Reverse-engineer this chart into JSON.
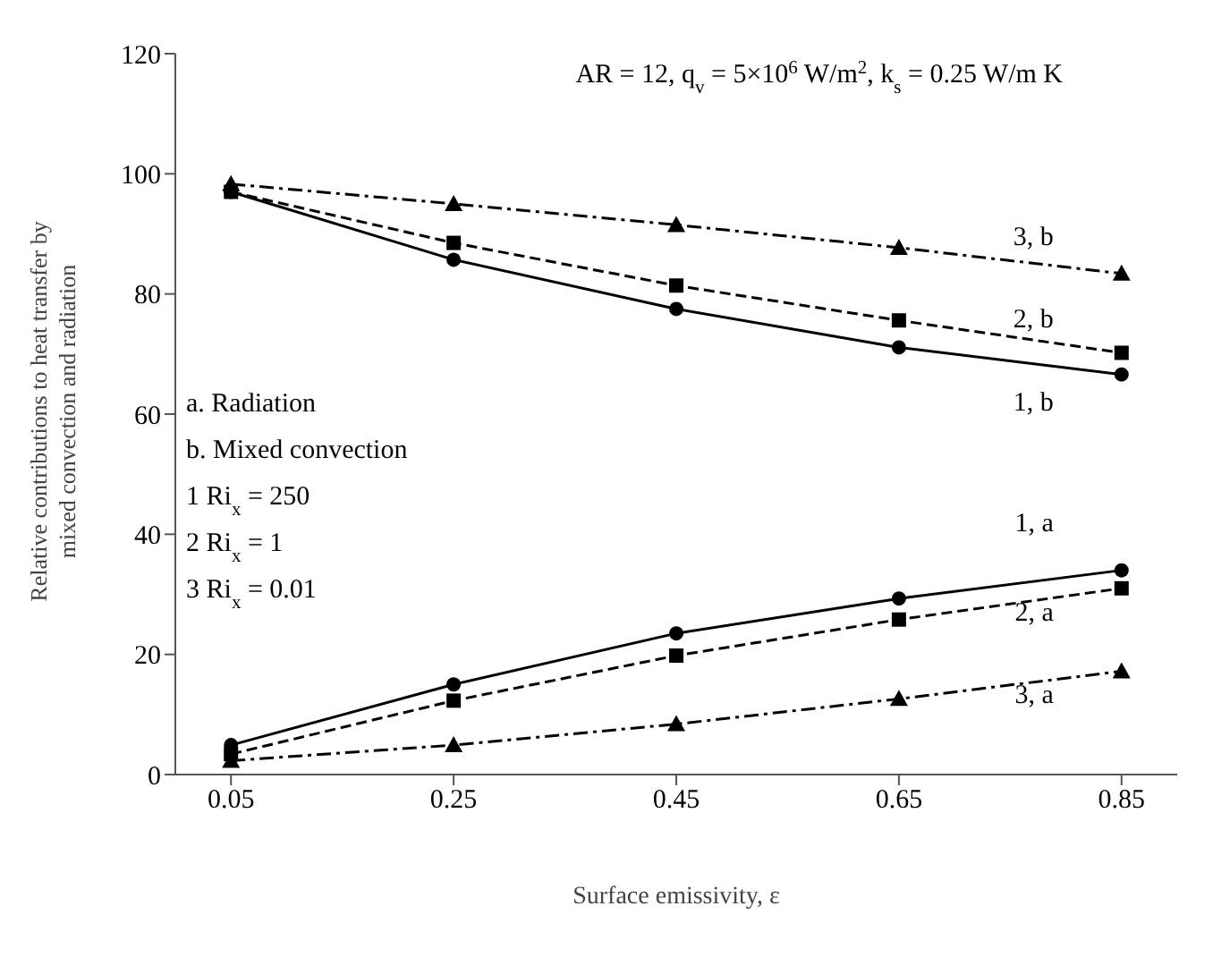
{
  "chart_data": {
    "type": "line",
    "xlabel": "Surface emissivity, ε",
    "ylabel": "Relative contributions to heat transfer by mixed convection and radiation",
    "x": [
      0.05,
      0.25,
      0.45,
      0.65,
      0.85
    ],
    "xlim": [
      0,
      0.9
    ],
    "xticks": [
      0.05,
      0.25,
      0.45,
      0.65,
      0.85
    ],
    "ylim": [
      0,
      120
    ],
    "yticks": [
      0,
      20,
      40,
      60,
      80,
      100,
      120
    ],
    "grid": false,
    "legend": false,
    "series": [
      {
        "name": "1, a",
        "color": "#000000",
        "marker": "circle",
        "line_style": "solid",
        "values": [
          4.9,
          15,
          23.5,
          29.3,
          34
        ]
      },
      {
        "name": "2, a",
        "color": "#000000",
        "marker": "square",
        "line_style": "dashed",
        "values": [
          3.4,
          12.3,
          19.8,
          25.8,
          31
        ]
      },
      {
        "name": "3, a",
        "color": "#000000",
        "marker": "triangle",
        "line_style": "dotted",
        "values": [
          2.3,
          4.9,
          8.4,
          12.6,
          17.2
        ]
      },
      {
        "name": "1, b",
        "color": "#000000",
        "marker": "circle",
        "line_style": "solid",
        "values": [
          97,
          85.7,
          77.5,
          71.1,
          66.6
        ]
      },
      {
        "name": "2, b",
        "color": "#000000",
        "marker": "square",
        "line_style": "dashed",
        "values": [
          97,
          88.5,
          81.4,
          75.6,
          70.2
        ]
      },
      {
        "name": "3, b",
        "color": "#000000",
        "marker": "triangle",
        "line_style": "dotted",
        "values": [
          98.3,
          95,
          91.5,
          87.7,
          83.4
        ]
      }
    ],
    "annotations": [
      "AR = 12, q$_{v}$ = 5×10$^{6}$ W/m$^{2}$, k$_{s}$ = 0.25 W/m K",
      "a. Radiation",
      "b. Mixed convection",
      "1 Ri$_{x}$ = 250",
      "2 Ri$_{x}$ = 1",
      "3 Ri$_{x}$ = 0.01"
    ]
  }
}
